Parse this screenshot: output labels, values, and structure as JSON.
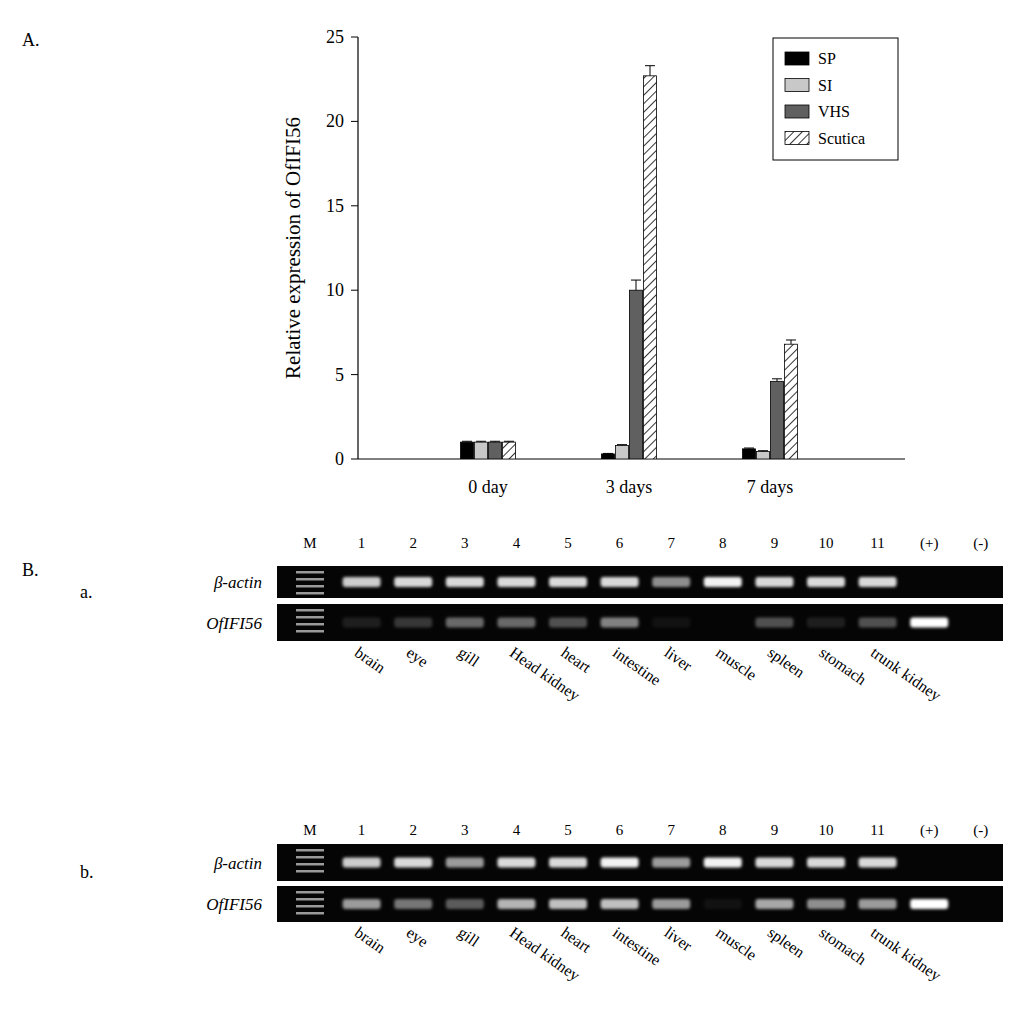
{
  "chart_data": {
    "type": "bar",
    "y_label": "Relative expression of OfIFI56",
    "categories": [
      "0 day",
      "3 days",
      "7 days"
    ],
    "series": [
      {
        "name": "SP",
        "color": "#000000",
        "values": [
          1.0,
          0.3,
          0.6
        ],
        "errors": [
          0.05,
          0.03,
          0.05
        ]
      },
      {
        "name": "SI",
        "color": "#c8c8c8",
        "values": [
          1.0,
          0.8,
          0.45
        ],
        "errors": [
          0.05,
          0.05,
          0.04
        ]
      },
      {
        "name": "VHS",
        "color": "#606060",
        "values": [
          1.0,
          10.0,
          4.6
        ],
        "errors": [
          0.05,
          0.6,
          0.15
        ]
      },
      {
        "name": "Scutica",
        "color": "#ffffff",
        "values": [
          1.0,
          22.7,
          6.8
        ],
        "errors": [
          0.05,
          0.6,
          0.25
        ]
      }
    ],
    "ylim": [
      0,
      25
    ],
    "yticks": [
      0,
      5,
      10,
      15,
      20,
      25
    ],
    "legend": "top-right",
    "grid": false
  },
  "panel_labels": [
    "A.",
    "B."
  ],
  "gels": [
    {
      "label": "a.",
      "lanes": [
        "M",
        "1",
        "2",
        "3",
        "4",
        "5",
        "6",
        "7",
        "8",
        "9",
        "10",
        "11",
        "(+)",
        "(-)"
      ],
      "tissues": [
        "brain",
        "eye",
        "gill",
        "Head kidney",
        "heart",
        "intestine",
        "liver",
        "muscle",
        "spleen",
        "stomach",
        "trunk kidney"
      ],
      "rows": [
        {
          "name": "β-actin",
          "intensity": [
            null,
            0.8,
            0.85,
            0.85,
            0.85,
            0.85,
            0.85,
            0.55,
            0.95,
            0.85,
            0.85,
            0.85,
            0,
            0
          ]
        },
        {
          "name": "OfIFI56",
          "intensity": [
            null,
            0.1,
            0.2,
            0.4,
            0.4,
            0.3,
            0.5,
            0.05,
            0,
            0.3,
            0.1,
            0.3,
            1,
            0
          ]
        }
      ]
    },
    {
      "label": "b.",
      "lanes": [
        "M",
        "1",
        "2",
        "3",
        "4",
        "5",
        "6",
        "7",
        "8",
        "9",
        "10",
        "11",
        "(+)",
        "(-)"
      ],
      "tissues": [
        "brain",
        "eye",
        "gill",
        "Head kidney",
        "heart",
        "intestine",
        "liver",
        "muscle",
        "spleen",
        "stomach",
        "trunk kidney"
      ],
      "rows": [
        {
          "name": "β-actin",
          "intensity": [
            null,
            0.8,
            0.85,
            0.6,
            0.85,
            0.85,
            0.95,
            0.6,
            0.95,
            0.85,
            0.85,
            0.85,
            0,
            0
          ]
        },
        {
          "name": "OfIFI56",
          "intensity": [
            null,
            0.6,
            0.45,
            0.35,
            0.7,
            0.75,
            0.75,
            0.6,
            0.05,
            0.65,
            0.55,
            0.6,
            1,
            0
          ]
        }
      ]
    }
  ]
}
